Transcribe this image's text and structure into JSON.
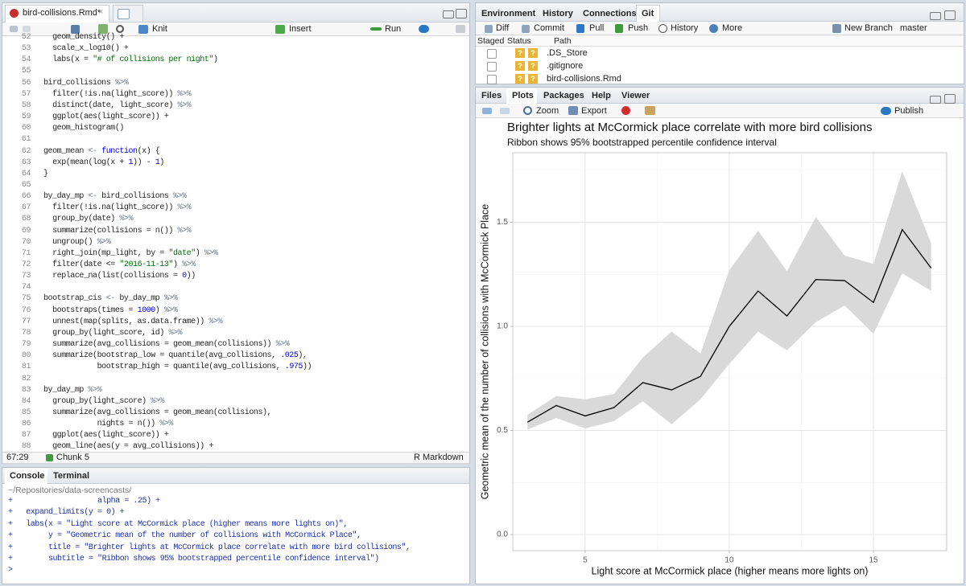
{
  "editor": {
    "tab": "bird-collisions.Rmd*",
    "toolbar": {
      "knit": "Knit",
      "insert": "Insert",
      "run": "Run"
    },
    "lines": [
      {
        "n": 52,
        "text": "  geom_density() +"
      },
      {
        "n": 53,
        "text": "  scale_x_log10() +"
      },
      {
        "n": 54,
        "text": "  labs(x = \"# of collisions per night\")"
      },
      {
        "n": 55
      },
      {
        "n": 56,
        "text": "bird_collisions %>%"
      },
      {
        "n": 57,
        "text": "  filter(!is.na(light_score)) %>%"
      },
      {
        "n": 58,
        "text": "  distinct(date, light_score) %>%"
      },
      {
        "n": 59,
        "text": "  ggplot(aes(light_score)) +"
      },
      {
        "n": 60,
        "text": "  geom_histogram()"
      },
      {
        "n": 61
      },
      {
        "n": 62,
        "text": "geom_mean <- function(x) {"
      },
      {
        "n": 63,
        "text": "  exp(mean(log(x + 1)) - 1)"
      },
      {
        "n": 64,
        "text": "}"
      },
      {
        "n": 65
      },
      {
        "n": 66,
        "text": "by_day_mp <- bird_collisions %>%"
      },
      {
        "n": 67,
        "text": "  filter(!is.na(light_score)) %>%"
      },
      {
        "n": 68,
        "text": "  group_by(date) %>%"
      },
      {
        "n": 69,
        "text": "  summarize(collisions = n()) %>%"
      },
      {
        "n": 70,
        "text": "  ungroup() %>%"
      },
      {
        "n": 71,
        "text": "  right_join(mp_light, by = \"date\") %>%"
      },
      {
        "n": 72,
        "text": "  filter(date <= \"2016-11-13\") %>%"
      },
      {
        "n": 73,
        "text": "  replace_na(list(collisions = 0))"
      },
      {
        "n": 74
      },
      {
        "n": 75,
        "text": "bootstrap_cis <- by_day_mp %>%"
      },
      {
        "n": 76,
        "text": "  bootstraps(times = 1000) %>%"
      },
      {
        "n": 77,
        "text": "  unnest(map(splits, as.data.frame)) %>%"
      },
      {
        "n": 78,
        "text": "  group_by(light_score, id) %>%"
      },
      {
        "n": 79,
        "text": "  summarize(avg_collisions = geom_mean(collisions)) %>%"
      },
      {
        "n": 80,
        "text": "  summarize(bootstrap_low = quantile(avg_collisions, .025),"
      },
      {
        "n": 81,
        "text": "            bootstrap_high = quantile(avg_collisions, .975))"
      },
      {
        "n": 82
      },
      {
        "n": 83,
        "text": "by_day_mp %>%"
      },
      {
        "n": 84,
        "text": "  group_by(light_score) %>%"
      },
      {
        "n": 85,
        "text": "  summarize(avg_collisions = geom_mean(collisions),"
      },
      {
        "n": 86,
        "text": "            nights = n()) %>%"
      },
      {
        "n": 87,
        "text": "  ggplot(aes(light_score)) +"
      },
      {
        "n": 88,
        "text": "  geom_line(aes(y = avg_collisions)) +"
      }
    ],
    "status": {
      "position": "67:29",
      "chunk": "Chunk 5",
      "mode": "R Markdown"
    }
  },
  "console": {
    "tabs": [
      "Console",
      "Terminal"
    ],
    "path": "~/Repositories/data-screencasts/",
    "lines": [
      "+                   alpha = .25) +",
      "+   expand_limits(y = 0) +",
      "+   labs(x = \"Light score at McCormick place (higher means more lights on)\",",
      "+        y = \"Geometric mean of the number of collisions with McCormick Place\",",
      "+        title = \"Brighter lights at McCormick place correlate with more bird collisions\",",
      "+        subtitle = \"Ribbon shows 95% bootstrapped percentile confidence interval\")",
      ">"
    ]
  },
  "vcs_pane": {
    "tabs": [
      "Environment",
      "History",
      "Connections",
      "Git"
    ],
    "toolbar": [
      "Diff",
      "Commit",
      "Pull",
      "Push",
      "History",
      "More"
    ],
    "new_branch": "New Branch",
    "branch": "master",
    "columns": [
      "Staged",
      "Status",
      "Path"
    ],
    "files": [
      {
        "name": ".DS_Store",
        "status": [
          "?",
          "?"
        ]
      },
      {
        "name": ".gitignore",
        "status": [
          "?",
          "?"
        ]
      },
      {
        "name": "bird-collisions.Rmd",
        "status": [
          "?",
          "?"
        ]
      }
    ]
  },
  "plots_pane": {
    "tabs": [
      "Files",
      "Plots",
      "Packages",
      "Help",
      "Viewer"
    ],
    "toolbar": [
      "Zoom",
      "Export"
    ],
    "publish": "Publish"
  },
  "chart_data": {
    "type": "line",
    "title": "Brighter lights at McCormick place correlate with more bird collisions",
    "subtitle": "Ribbon shows 95% bootstrapped percentile confidence interval",
    "x_label": "Light score at McCormick place (higher means more lights on)",
    "y_label": "Geometric mean of the number of collisions with McCormick Place",
    "x": [
      3,
      4,
      5,
      6,
      7,
      8,
      9,
      10,
      11,
      12,
      13,
      14,
      15,
      16,
      17
    ],
    "values": [
      0.54,
      0.62,
      0.57,
      0.61,
      0.73,
      0.695,
      0.76,
      1.0,
      1.17,
      1.05,
      1.225,
      1.22,
      1.115,
      1.465,
      1.28
    ],
    "color": "#000000",
    "ribbon": {
      "low": [
        0.505,
        0.56,
        0.51,
        0.545,
        0.64,
        0.53,
        0.65,
        0.82,
        0.975,
        0.885,
        1.02,
        1.1,
        0.965,
        1.255,
        1.17
      ],
      "high": [
        0.575,
        0.665,
        0.65,
        0.675,
        0.85,
        0.975,
        0.87,
        1.27,
        1.46,
        1.265,
        1.525,
        1.34,
        1.3,
        1.745,
        1.4
      ],
      "color": "#d9d9d9"
    },
    "xlim": [
      2.49,
      17.54
    ],
    "ylim": [
      -0.077,
      1.834
    ],
    "xticks": [
      5,
      10,
      15
    ],
    "yticks": [
      {
        "value": 0,
        "label": "0.0"
      },
      0.5,
      {
        "value": 1,
        "label": "1.0"
      },
      1.5
    ],
    "minor_xticks": [
      2.5,
      7.5,
      12.5,
      17.5
    ],
    "minor_yticks": [
      0.25,
      0.75,
      1.25,
      1.75
    ],
    "grid": true
  }
}
